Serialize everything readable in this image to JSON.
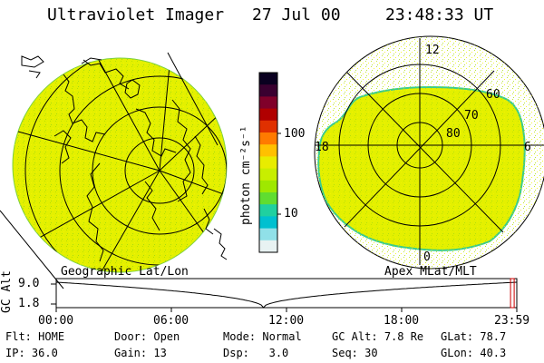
{
  "header": {
    "instrument": "Ultraviolet Imager",
    "date": "27 Jul 00",
    "time": "23:48:33 UT"
  },
  "colorbar": {
    "unit_label": "photon cm⁻²s⁻¹",
    "ticks": [
      "100",
      "10"
    ],
    "colors": [
      "#0a0020",
      "#3a0030",
      "#80002a",
      "#b00000",
      "#e03000",
      "#ff7a00",
      "#ffc000",
      "#e8ec00",
      "#c8ee00",
      "#9fe800",
      "#60dd30",
      "#20d0a0",
      "#00c0d0",
      "#90e0e8",
      "#e8f2f2"
    ]
  },
  "left_panel": {
    "label": "Geographic Lat/Lon",
    "fill_color": "#e4f000"
  },
  "right_panel": {
    "label": "Apex MLat/MLT",
    "mlt_labels": [
      "12",
      "18",
      "6",
      "0"
    ],
    "lat_labels": [
      "60",
      "70",
      "80"
    ],
    "fill_color": "#e4f000"
  },
  "timeline": {
    "ylabel": "GC Alt",
    "ymax_label": "9.0",
    "ymin_label": "1.8",
    "x_ticks": [
      "00:00",
      "06:00",
      "12:00",
      "18:00",
      "23:59"
    ],
    "current_fraction": 0.9923
  },
  "info": {
    "row1": [
      {
        "label": "Flt:",
        "value": "HOME"
      },
      {
        "label": "Door:",
        "value": "Open"
      },
      {
        "label": "Mode:",
        "value": "Normal"
      },
      {
        "label": "GC Alt:",
        "value": "7.8 Re"
      },
      {
        "label": "GLat:",
        "value": "78.7"
      }
    ],
    "row2": [
      {
        "label": "IP:",
        "value": "36.0"
      },
      {
        "label": "Gain:",
        "value": "13"
      },
      {
        "label": "Dsp:",
        "value": "3.0"
      },
      {
        "label": "Seq:",
        "value": "30"
      },
      {
        "label": "GLon:",
        "value": "40.3"
      }
    ]
  }
}
